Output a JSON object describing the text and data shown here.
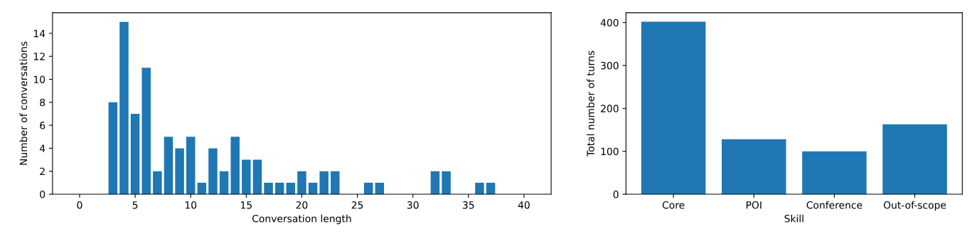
{
  "chart_data": [
    {
      "type": "bar",
      "xlabel": "Conversation length",
      "ylabel": "Number of conversations",
      "x": [
        0,
        1,
        2,
        3,
        4,
        5,
        6,
        7,
        8,
        9,
        10,
        11,
        12,
        13,
        14,
        15,
        16,
        17,
        18,
        19,
        20,
        21,
        22,
        23,
        24,
        25,
        26,
        27,
        28,
        29,
        30,
        31,
        32,
        33,
        34,
        35,
        36,
        37,
        38,
        39,
        40
      ],
      "values": [
        0,
        0,
        0,
        8,
        15,
        7,
        11,
        2,
        5,
        4,
        5,
        1,
        4,
        2,
        5,
        3,
        3,
        1,
        1,
        1,
        2,
        1,
        2,
        2,
        0,
        0,
        1,
        1,
        0,
        0,
        0,
        0,
        2,
        2,
        0,
        0,
        1,
        1,
        0,
        0,
        0
      ],
      "color": "#1f77b4",
      "xlim": [
        -2.44,
        42.44
      ],
      "xticks": [
        0,
        5,
        10,
        15,
        20,
        25,
        30,
        35,
        40
      ],
      "ylim": [
        0,
        15.8
      ],
      "yticks": [
        0,
        2,
        4,
        6,
        8,
        10,
        12,
        14
      ],
      "grid": false,
      "legend": false
    },
    {
      "type": "bar",
      "xlabel": "Skill",
      "ylabel": "Total number of turns",
      "categories": [
        "Core",
        "POI",
        "Conference",
        "Out-of-scope"
      ],
      "values": [
        402,
        128,
        100,
        163
      ],
      "color": "#1f77b4",
      "ylim": [
        0,
        423
      ],
      "yticks": [
        0,
        100,
        200,
        300,
        400
      ],
      "grid": false,
      "legend": false
    }
  ]
}
